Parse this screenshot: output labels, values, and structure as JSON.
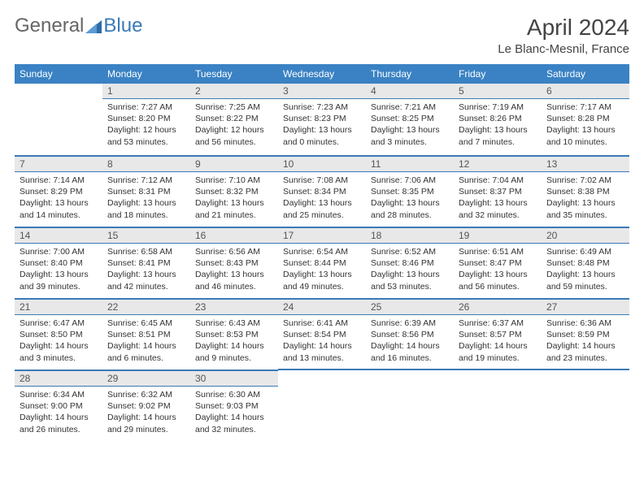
{
  "logo": {
    "text1": "General",
    "text2": "Blue"
  },
  "title": "April 2024",
  "location": "Le Blanc-Mesnil, France",
  "colors": {
    "header_bg": "#3a82c4",
    "header_fg": "#ffffff",
    "daynum_bg": "#e8e8e8",
    "rule": "#3a7ab8",
    "text": "#333333"
  },
  "weekdays": [
    "Sunday",
    "Monday",
    "Tuesday",
    "Wednesday",
    "Thursday",
    "Friday",
    "Saturday"
  ],
  "weeks": [
    [
      null,
      {
        "n": "1",
        "sr": "7:27 AM",
        "ss": "8:20 PM",
        "dl": "12 hours and 53 minutes."
      },
      {
        "n": "2",
        "sr": "7:25 AM",
        "ss": "8:22 PM",
        "dl": "12 hours and 56 minutes."
      },
      {
        "n": "3",
        "sr": "7:23 AM",
        "ss": "8:23 PM",
        "dl": "13 hours and 0 minutes."
      },
      {
        "n": "4",
        "sr": "7:21 AM",
        "ss": "8:25 PM",
        "dl": "13 hours and 3 minutes."
      },
      {
        "n": "5",
        "sr": "7:19 AM",
        "ss": "8:26 PM",
        "dl": "13 hours and 7 minutes."
      },
      {
        "n": "6",
        "sr": "7:17 AM",
        "ss": "8:28 PM",
        "dl": "13 hours and 10 minutes."
      }
    ],
    [
      {
        "n": "7",
        "sr": "7:14 AM",
        "ss": "8:29 PM",
        "dl": "13 hours and 14 minutes."
      },
      {
        "n": "8",
        "sr": "7:12 AM",
        "ss": "8:31 PM",
        "dl": "13 hours and 18 minutes."
      },
      {
        "n": "9",
        "sr": "7:10 AM",
        "ss": "8:32 PM",
        "dl": "13 hours and 21 minutes."
      },
      {
        "n": "10",
        "sr": "7:08 AM",
        "ss": "8:34 PM",
        "dl": "13 hours and 25 minutes."
      },
      {
        "n": "11",
        "sr": "7:06 AM",
        "ss": "8:35 PM",
        "dl": "13 hours and 28 minutes."
      },
      {
        "n": "12",
        "sr": "7:04 AM",
        "ss": "8:37 PM",
        "dl": "13 hours and 32 minutes."
      },
      {
        "n": "13",
        "sr": "7:02 AM",
        "ss": "8:38 PM",
        "dl": "13 hours and 35 minutes."
      }
    ],
    [
      {
        "n": "14",
        "sr": "7:00 AM",
        "ss": "8:40 PM",
        "dl": "13 hours and 39 minutes."
      },
      {
        "n": "15",
        "sr": "6:58 AM",
        "ss": "8:41 PM",
        "dl": "13 hours and 42 minutes."
      },
      {
        "n": "16",
        "sr": "6:56 AM",
        "ss": "8:43 PM",
        "dl": "13 hours and 46 minutes."
      },
      {
        "n": "17",
        "sr": "6:54 AM",
        "ss": "8:44 PM",
        "dl": "13 hours and 49 minutes."
      },
      {
        "n": "18",
        "sr": "6:52 AM",
        "ss": "8:46 PM",
        "dl": "13 hours and 53 minutes."
      },
      {
        "n": "19",
        "sr": "6:51 AM",
        "ss": "8:47 PM",
        "dl": "13 hours and 56 minutes."
      },
      {
        "n": "20",
        "sr": "6:49 AM",
        "ss": "8:48 PM",
        "dl": "13 hours and 59 minutes."
      }
    ],
    [
      {
        "n": "21",
        "sr": "6:47 AM",
        "ss": "8:50 PM",
        "dl": "14 hours and 3 minutes."
      },
      {
        "n": "22",
        "sr": "6:45 AM",
        "ss": "8:51 PM",
        "dl": "14 hours and 6 minutes."
      },
      {
        "n": "23",
        "sr": "6:43 AM",
        "ss": "8:53 PM",
        "dl": "14 hours and 9 minutes."
      },
      {
        "n": "24",
        "sr": "6:41 AM",
        "ss": "8:54 PM",
        "dl": "14 hours and 13 minutes."
      },
      {
        "n": "25",
        "sr": "6:39 AM",
        "ss": "8:56 PM",
        "dl": "14 hours and 16 minutes."
      },
      {
        "n": "26",
        "sr": "6:37 AM",
        "ss": "8:57 PM",
        "dl": "14 hours and 19 minutes."
      },
      {
        "n": "27",
        "sr": "6:36 AM",
        "ss": "8:59 PM",
        "dl": "14 hours and 23 minutes."
      }
    ],
    [
      {
        "n": "28",
        "sr": "6:34 AM",
        "ss": "9:00 PM",
        "dl": "14 hours and 26 minutes."
      },
      {
        "n": "29",
        "sr": "6:32 AM",
        "ss": "9:02 PM",
        "dl": "14 hours and 29 minutes."
      },
      {
        "n": "30",
        "sr": "6:30 AM",
        "ss": "9:03 PM",
        "dl": "14 hours and 32 minutes."
      },
      null,
      null,
      null,
      null
    ]
  ],
  "labels": {
    "sunrise": "Sunrise:",
    "sunset": "Sunset:",
    "daylight": "Daylight:"
  }
}
